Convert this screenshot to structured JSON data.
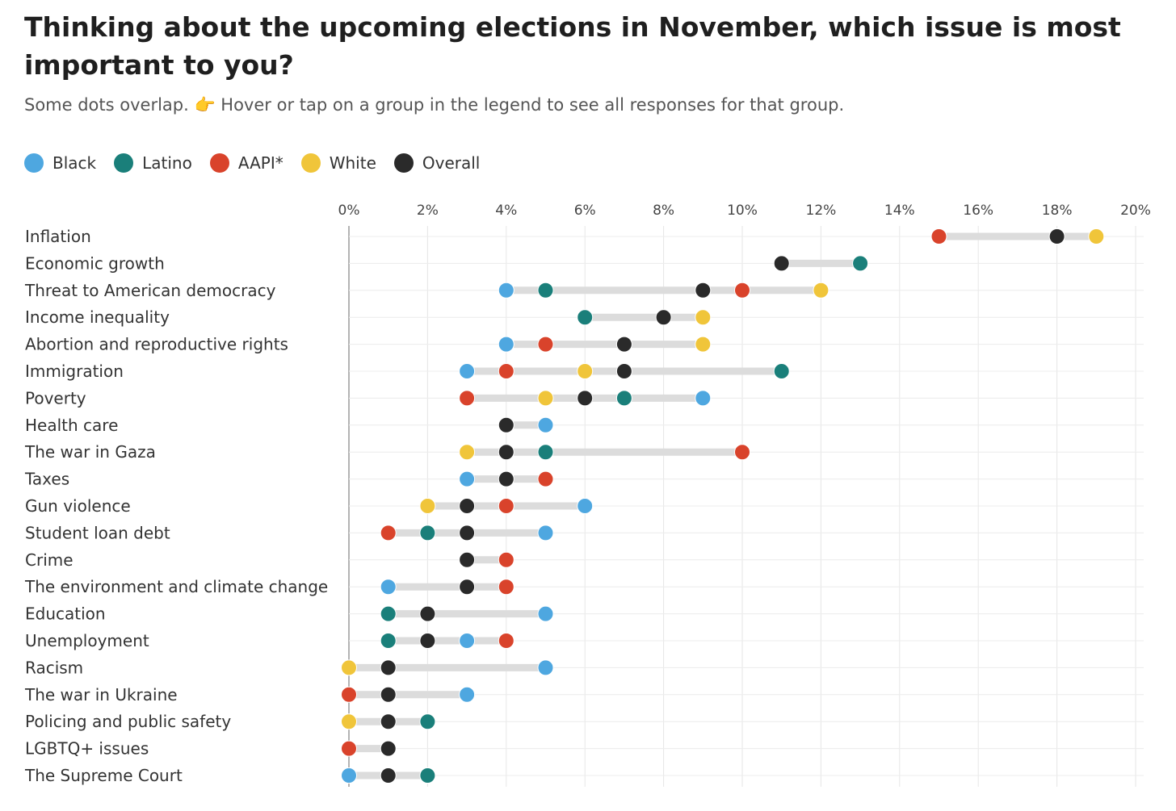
{
  "title": "Thinking about the upcoming elections in November, which issue is most important to you?",
  "subtitle": "Some dots overlap. 👉 Hover or tap on a group in the legend to see all responses for that group.",
  "legend": [
    {
      "name": "Black",
      "color": "#4ea7e0"
    },
    {
      "name": "Latino",
      "color": "#1a7f7a"
    },
    {
      "name": "AAPI*",
      "color": "#d9432b"
    },
    {
      "name": "White",
      "color": "#f0c53a"
    },
    {
      "name": "Overall",
      "color": "#2a2a2a"
    }
  ],
  "chart_data": {
    "type": "scatter",
    "xlim": [
      0,
      20
    ],
    "x_ticks": [
      "0%",
      "2%",
      "4%",
      "6%",
      "8%",
      "10%",
      "12%",
      "14%",
      "16%",
      "18%",
      "20%"
    ],
    "grid": true,
    "legend_position": "top-left",
    "categories": [
      "Inflation",
      "Economic growth",
      "Threat to American democracy",
      "Income inequality",
      "Abortion and reproductive rights",
      "Immigration",
      "Poverty",
      "Health care",
      "The war in Gaza",
      "Taxes",
      "Gun violence",
      "Student loan debt",
      "Crime",
      "The environment and climate change",
      "Education",
      "Unemployment",
      "Racism",
      "The war in Ukraine",
      "Policing and public safety",
      "LGBTQ+ issues",
      "The Supreme Court"
    ],
    "series": [
      {
        "name": "Black",
        "color": "#4ea7e0",
        "values": [
          null,
          null,
          4,
          null,
          4,
          3,
          9,
          5,
          null,
          3,
          6,
          5,
          null,
          1,
          5,
          3,
          5,
          3,
          null,
          null,
          0
        ]
      },
      {
        "name": "Latino",
        "color": "#1a7f7a",
        "values": [
          null,
          13,
          5,
          6,
          null,
          11,
          7,
          null,
          5,
          null,
          null,
          2,
          null,
          null,
          1,
          1,
          null,
          null,
          2,
          null,
          2
        ]
      },
      {
        "name": "AAPI*",
        "color": "#d9432b",
        "values": [
          15,
          null,
          10,
          null,
          5,
          4,
          3,
          null,
          10,
          5,
          4,
          1,
          4,
          4,
          null,
          4,
          null,
          0,
          null,
          0,
          null
        ]
      },
      {
        "name": "White",
        "color": "#f0c53a",
        "values": [
          19,
          null,
          12,
          9,
          9,
          6,
          5,
          null,
          3,
          null,
          2,
          null,
          null,
          null,
          null,
          null,
          0,
          null,
          0,
          null,
          null
        ]
      },
      {
        "name": "Overall",
        "color": "#2a2a2a",
        "values": [
          18,
          11,
          9,
          8,
          7,
          7,
          6,
          4,
          4,
          4,
          3,
          3,
          3,
          3,
          2,
          2,
          1,
          1,
          1,
          1,
          1
        ]
      }
    ]
  }
}
